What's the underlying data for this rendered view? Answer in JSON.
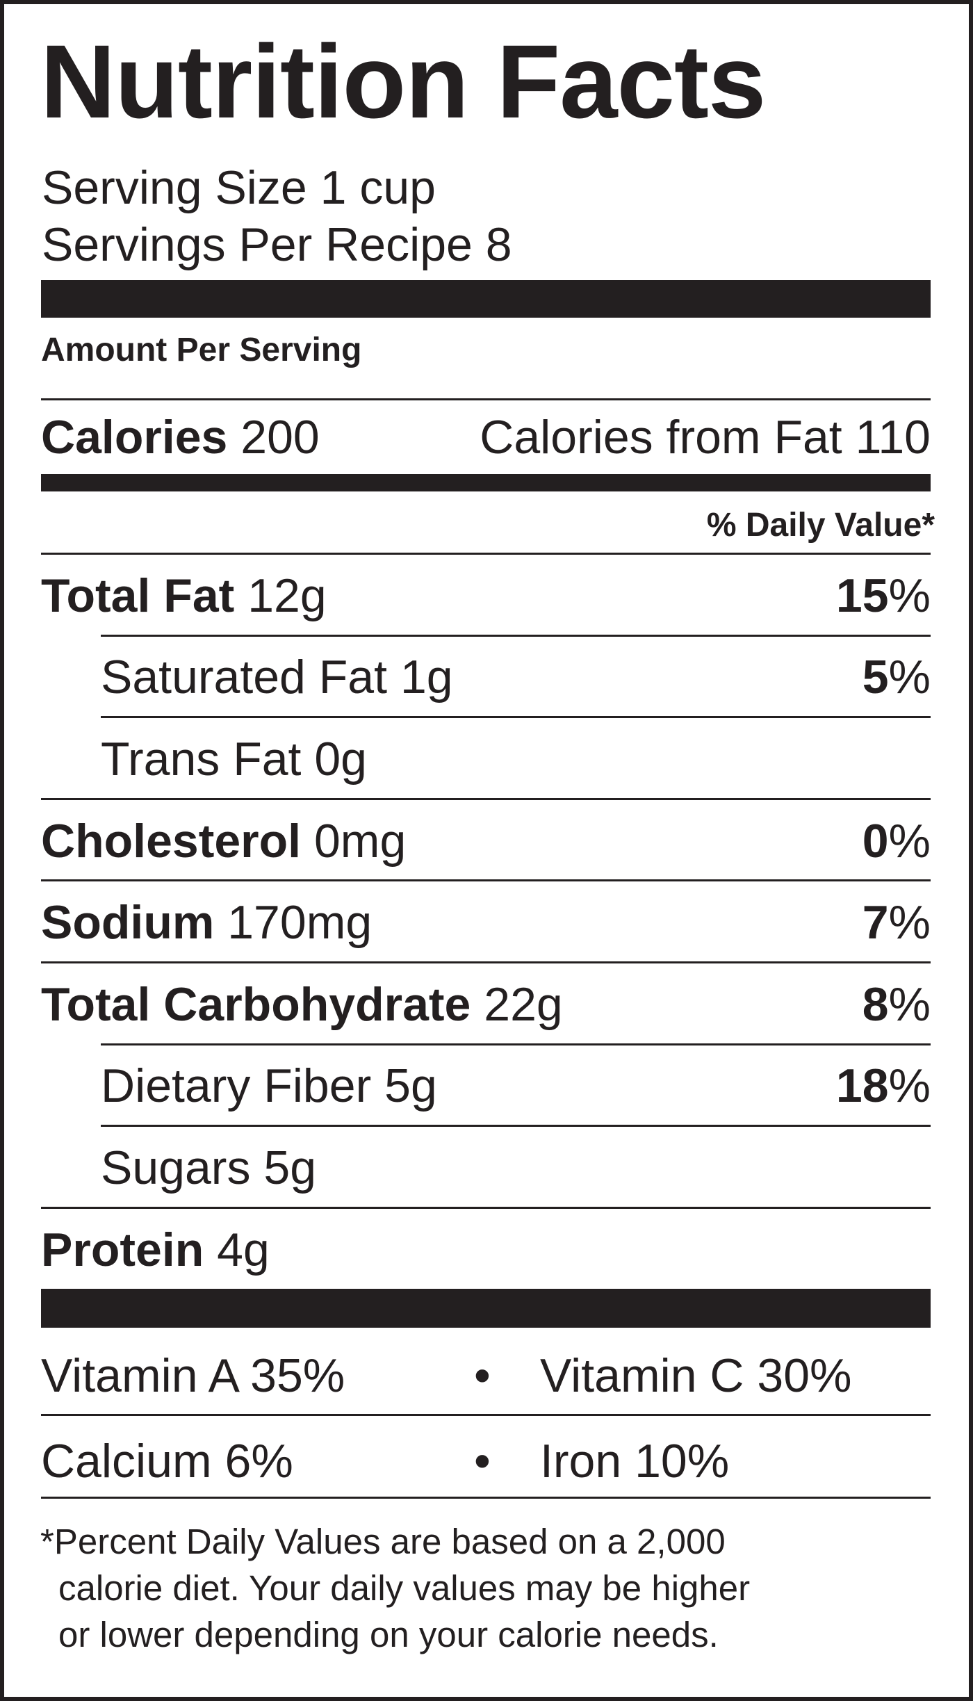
{
  "title": "Nutrition Facts",
  "serving_size": "Serving Size 1 cup",
  "servings_per": "Servings Per Recipe 8",
  "amount_per_serving": "Amount Per Serving",
  "calories": {
    "label": "Calories",
    "value": "200",
    "from_fat": "Calories from Fat 110"
  },
  "daily_value_header": "% Daily Value*",
  "nutrients": [
    {
      "label": "Total Fat",
      "amount": "12g",
      "dv": "15",
      "indent": false
    },
    {
      "label": "Saturated Fat",
      "amount": "1g",
      "dv": "5",
      "indent": true
    },
    {
      "label": "Trans Fat",
      "amount": "0g",
      "dv": "",
      "indent": true
    },
    {
      "label": "Cholesterol",
      "amount": "0mg",
      "dv": "0",
      "indent": false
    },
    {
      "label": "Sodium",
      "amount": "170mg",
      "dv": "7",
      "indent": false
    },
    {
      "label": "Total Carbohydrate",
      "amount": "22g",
      "dv": "8",
      "indent": false
    },
    {
      "label": "Dietary Fiber",
      "amount": "5g",
      "dv": "18",
      "indent": true
    },
    {
      "label": "Sugars",
      "amount": "5g",
      "dv": "",
      "indent": true
    },
    {
      "label": "Protein",
      "amount": "4g",
      "dv": "",
      "indent": false
    }
  ],
  "percent_sign": "%",
  "vitamins": [
    {
      "left": "Vitamin A 35%",
      "right": "Vitamin C 30%"
    },
    {
      "left": "Calcium 6%",
      "right": "Iron 10%"
    }
  ],
  "bullet": "•",
  "footnote": [
    "*Percent Daily Values are based on a 2,000",
    "calorie diet. Your daily values may be higher",
    "or lower depending on your calorie needs."
  ]
}
